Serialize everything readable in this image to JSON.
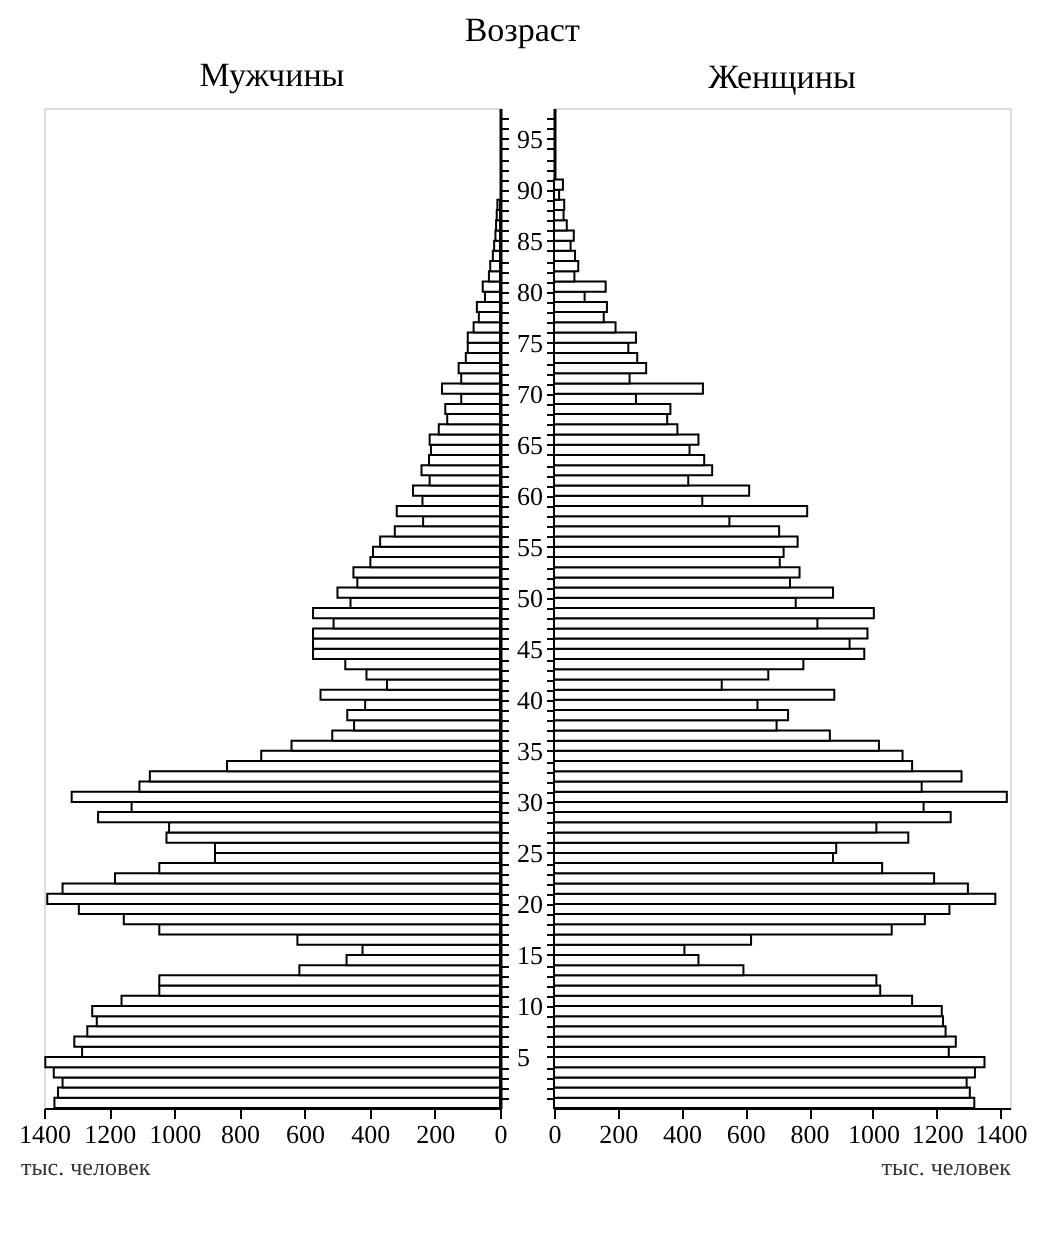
{
  "chart_data": [
    {
      "type": "bar",
      "orientation": "horizontal",
      "title": "Мужчины",
      "ylabel": "Возраст",
      "xlabel": "тыс. человек",
      "grid": false,
      "legend": false,
      "x": [
        0,
        1,
        2,
        3,
        4,
        5,
        6,
        7,
        8,
        9,
        10,
        11,
        12,
        13,
        14,
        15,
        16,
        17,
        18,
        19,
        20,
        21,
        22,
        23,
        24,
        25,
        26,
        27,
        28,
        29,
        30,
        31,
        32,
        33,
        34,
        35,
        36,
        37,
        38,
        39,
        40,
        41,
        42,
        43,
        44,
        45,
        46,
        47,
        48,
        49,
        50,
        51,
        52,
        53,
        54,
        55,
        56,
        57,
        58,
        59,
        60,
        61,
        62,
        63,
        64,
        65,
        66,
        67,
        68,
        69,
        70,
        71,
        72,
        73,
        74,
        75,
        76,
        77,
        78,
        79,
        80,
        81,
        82,
        83,
        84,
        85,
        86,
        87,
        88
      ],
      "series": [
        {
          "color": "#ffffff",
          "values": [
            1368,
            1357,
            1343,
            1370,
            1396,
            1283,
            1307,
            1267,
            1238,
            1252,
            1162,
            1046,
            1046,
            616,
            471,
            422,
            622,
            1046,
            1155,
            1293,
            1390,
            1343,
            1182,
            1046,
            875,
            875,
            1024,
            1016,
            1234,
            1131,
            1315,
            1107,
            1075,
            838,
            733,
            640,
            515,
            448,
            469,
            414,
            551,
            347,
            410,
            475,
            574,
            574,
            574,
            511,
            574,
            459,
            499,
            438,
            450,
            398,
            390,
            368,
            323,
            236,
            317,
            238,
            267,
            216,
            241,
            218,
            212,
            216,
            188,
            162,
            168,
            119,
            178,
            119,
            127,
            105,
            99,
            99,
            81,
            65,
            71,
            46,
            53,
            34,
            30,
            22,
            18,
            14,
            12,
            10,
            8
          ]
        }
      ],
      "xlim": [
        1400,
        0
      ],
      "xticks": [
        1400,
        1200,
        1000,
        800,
        600,
        400,
        200,
        0
      ],
      "ylim": [
        0,
        98
      ],
      "yticks": [
        {
          "value": 1,
          "label": null
        },
        {
          "value": 2,
          "label": null
        },
        {
          "value": 3,
          "label": null
        },
        {
          "value": 4,
          "label": null
        },
        5,
        {
          "value": 6,
          "label": null
        },
        {
          "value": 7,
          "label": null
        },
        {
          "value": 8,
          "label": null
        },
        {
          "value": 9,
          "label": null
        },
        10,
        {
          "value": 11,
          "label": null
        },
        {
          "value": 12,
          "label": null
        },
        {
          "value": 13,
          "label": null
        },
        {
          "value": 14,
          "label": null
        },
        15,
        {
          "value": 16,
          "label": null
        },
        {
          "value": 17,
          "label": null
        },
        {
          "value": 18,
          "label": null
        },
        {
          "value": 19,
          "label": null
        },
        20,
        {
          "value": 21,
          "label": null
        },
        {
          "value": 22,
          "label": null
        },
        {
          "value": 23,
          "label": null
        },
        {
          "value": 24,
          "label": null
        },
        25,
        {
          "value": 26,
          "label": null
        },
        {
          "value": 27,
          "label": null
        },
        {
          "value": 28,
          "label": null
        },
        {
          "value": 29,
          "label": null
        },
        30,
        {
          "value": 31,
          "label": null
        },
        {
          "value": 32,
          "label": null
        },
        {
          "value": 33,
          "label": null
        },
        {
          "value": 34,
          "label": null
        },
        35,
        {
          "value": 36,
          "label": null
        },
        {
          "value": 37,
          "label": null
        },
        {
          "value": 38,
          "label": null
        },
        {
          "value": 39,
          "label": null
        },
        40,
        {
          "value": 41,
          "label": null
        },
        {
          "value": 42,
          "label": null
        },
        {
          "value": 43,
          "label": null
        },
        {
          "value": 44,
          "label": null
        },
        45,
        {
          "value": 46,
          "label": null
        },
        {
          "value": 47,
          "label": null
        },
        {
          "value": 48,
          "label": null
        },
        {
          "value": 49,
          "label": null
        },
        50,
        {
          "value": 51,
          "label": null
        },
        {
          "value": 52,
          "label": null
        },
        {
          "value": 53,
          "label": null
        },
        {
          "value": 54,
          "label": null
        },
        55,
        {
          "value": 56,
          "label": null
        },
        {
          "value": 57,
          "label": null
        },
        {
          "value": 58,
          "label": null
        },
        {
          "value": 59,
          "label": null
        },
        60,
        {
          "value": 61,
          "label": null
        },
        {
          "value": 62,
          "label": null
        },
        {
          "value": 63,
          "label": null
        },
        {
          "value": 64,
          "label": null
        },
        65,
        {
          "value": 66,
          "label": null
        },
        {
          "value": 67,
          "label": null
        },
        {
          "value": 68,
          "label": null
        },
        {
          "value": 69,
          "label": null
        },
        70,
        {
          "value": 71,
          "label": null
        },
        {
          "value": 72,
          "label": null
        },
        {
          "value": 73,
          "label": null
        },
        {
          "value": 74,
          "label": null
        },
        75,
        {
          "value": 76,
          "label": null
        },
        {
          "value": 77,
          "label": null
        },
        {
          "value": 78,
          "label": null
        },
        {
          "value": 79,
          "label": null
        },
        80,
        {
          "value": 81,
          "label": null
        },
        {
          "value": 82,
          "label": null
        },
        {
          "value": 83,
          "label": null
        },
        {
          "value": 84,
          "label": null
        },
        85,
        {
          "value": 86,
          "label": null
        },
        {
          "value": 87,
          "label": null
        },
        {
          "value": 88,
          "label": null
        },
        {
          "value": 89,
          "label": null
        },
        90,
        {
          "value": 91,
          "label": null
        },
        {
          "value": 92,
          "label": null
        },
        {
          "value": 93,
          "label": null
        },
        {
          "value": 94,
          "label": null
        },
        95,
        {
          "value": 96,
          "label": null
        },
        {
          "value": 97,
          "label": null
        }
      ]
    },
    {
      "type": "bar",
      "orientation": "horizontal",
      "title": "Женщины",
      "xlabel": "тыс. человек",
      "grid": false,
      "legend": false,
      "tick_labels": "x",
      "x": [
        0,
        1,
        2,
        3,
        4,
        5,
        6,
        7,
        8,
        9,
        10,
        11,
        12,
        13,
        14,
        15,
        16,
        17,
        18,
        19,
        20,
        21,
        22,
        23,
        24,
        25,
        26,
        27,
        28,
        29,
        30,
        31,
        32,
        33,
        34,
        35,
        36,
        37,
        38,
        39,
        40,
        41,
        42,
        43,
        44,
        45,
        46,
        47,
        48,
        49,
        50,
        51,
        52,
        53,
        54,
        55,
        56,
        57,
        58,
        59,
        60,
        61,
        62,
        63,
        64,
        65,
        66,
        67,
        68,
        69,
        70,
        71,
        72,
        73,
        74,
        75,
        76,
        77,
        78,
        79,
        80,
        81,
        82,
        83,
        84,
        85,
        86,
        87,
        88,
        89,
        90
      ],
      "series": [
        {
          "color": "#ffffff",
          "values": [
            1318,
            1304,
            1294,
            1320,
            1350,
            1238,
            1260,
            1228,
            1220,
            1216,
            1123,
            1023,
            1011,
            594,
            453,
            409,
            618,
            1059,
            1163,
            1240,
            1384,
            1298,
            1192,
            1029,
            875,
            885,
            1111,
            1011,
            1244,
            1159,
            1420,
            1153,
            1278,
            1123,
            1093,
            1019,
            865,
            698,
            734,
            638,
            879,
            526,
            672,
            782,
            973,
            927,
            983,
            826,
            1003,
            758,
            875,
            740,
            770,
            708,
            720,
            764,
            706,
            550,
            794,
            465,
            612,
            421,
            496,
            471,
            425,
            453,
            387,
            355,
            365,
            257,
            467,
            237,
            289,
            261,
            233,
            257,
            193,
            156,
            166,
            96,
            162,
            64,
            76,
            66,
            52,
            62,
            40,
            30,
            32,
            16,
            28
          ]
        }
      ],
      "xlim": [
        0,
        1430
      ],
      "xticks": [
        0,
        200,
        400,
        600,
        800,
        1000,
        1200,
        1400
      ],
      "ylim": [
        0,
        98
      ],
      "yticks": [
        {
          "value": 1,
          "label": null
        },
        {
          "value": 2,
          "label": null
        },
        {
          "value": 3,
          "label": null
        },
        {
          "value": 4,
          "label": null
        },
        {
          "value": 5,
          "label": null
        },
        {
          "value": 6,
          "label": null
        },
        {
          "value": 7,
          "label": null
        },
        {
          "value": 8,
          "label": null
        },
        {
          "value": 9,
          "label": null
        },
        {
          "value": 10,
          "label": null
        },
        {
          "value": 11,
          "label": null
        },
        {
          "value": 12,
          "label": null
        },
        {
          "value": 13,
          "label": null
        },
        {
          "value": 14,
          "label": null
        },
        {
          "value": 15,
          "label": null
        },
        {
          "value": 16,
          "label": null
        },
        {
          "value": 17,
          "label": null
        },
        {
          "value": 18,
          "label": null
        },
        {
          "value": 19,
          "label": null
        },
        {
          "value": 20,
          "label": null
        },
        {
          "value": 21,
          "label": null
        },
        {
          "value": 22,
          "label": null
        },
        {
          "value": 23,
          "label": null
        },
        {
          "value": 24,
          "label": null
        },
        {
          "value": 25,
          "label": null
        },
        {
          "value": 26,
          "label": null
        },
        {
          "value": 27,
          "label": null
        },
        {
          "value": 28,
          "label": null
        },
        {
          "value": 29,
          "label": null
        },
        {
          "value": 30,
          "label": null
        },
        {
          "value": 31,
          "label": null
        },
        {
          "value": 32,
          "label": null
        },
        {
          "value": 33,
          "label": null
        },
        {
          "value": 34,
          "label": null
        },
        {
          "value": 35,
          "label": null
        },
        {
          "value": 36,
          "label": null
        },
        {
          "value": 37,
          "label": null
        },
        {
          "value": 38,
          "label": null
        },
        {
          "value": 39,
          "label": null
        },
        {
          "value": 40,
          "label": null
        },
        {
          "value": 41,
          "label": null
        },
        {
          "value": 42,
          "label": null
        },
        {
          "value": 43,
          "label": null
        },
        {
          "value": 44,
          "label": null
        },
        {
          "value": 45,
          "label": null
        },
        {
          "value": 46,
          "label": null
        },
        {
          "value": 47,
          "label": null
        },
        {
          "value": 48,
          "label": null
        },
        {
          "value": 49,
          "label": null
        },
        {
          "value": 50,
          "label": null
        },
        {
          "value": 51,
          "label": null
        },
        {
          "value": 52,
          "label": null
        },
        {
          "value": 53,
          "label": null
        },
        {
          "value": 54,
          "label": null
        },
        {
          "value": 55,
          "label": null
        },
        {
          "value": 56,
          "label": null
        },
        {
          "value": 57,
          "label": null
        },
        {
          "value": 58,
          "label": null
        },
        {
          "value": 59,
          "label": null
        },
        {
          "value": 60,
          "label": null
        },
        {
          "value": 61,
          "label": null
        },
        {
          "value": 62,
          "label": null
        },
        {
          "value": 63,
          "label": null
        },
        {
          "value": 64,
          "label": null
        },
        {
          "value": 65,
          "label": null
        },
        {
          "value": 66,
          "label": null
        },
        {
          "value": 67,
          "label": null
        },
        {
          "value": 68,
          "label": null
        },
        {
          "value": 69,
          "label": null
        },
        {
          "value": 70,
          "label": null
        },
        {
          "value": 71,
          "label": null
        },
        {
          "value": 72,
          "label": null
        },
        {
          "value": 73,
          "label": null
        },
        {
          "value": 74,
          "label": null
        },
        {
          "value": 75,
          "label": null
        },
        {
          "value": 76,
          "label": null
        },
        {
          "value": 77,
          "label": null
        },
        {
          "value": 78,
          "label": null
        },
        {
          "value": 79,
          "label": null
        },
        {
          "value": 80,
          "label": null
        },
        {
          "value": 81,
          "label": null
        },
        {
          "value": 82,
          "label": null
        },
        {
          "value": 83,
          "label": null
        },
        {
          "value": 84,
          "label": null
        },
        {
          "value": 85,
          "label": null
        },
        {
          "value": 86,
          "label": null
        },
        {
          "value": 87,
          "label": null
        },
        {
          "value": 88,
          "label": null
        },
        {
          "value": 89,
          "label": null
        },
        {
          "value": 90,
          "label": null
        },
        {
          "value": 91,
          "label": null
        },
        {
          "value": 92,
          "label": null
        },
        {
          "value": 93,
          "label": null
        },
        {
          "value": 94,
          "label": null
        },
        {
          "value": 95,
          "label": null
        },
        {
          "value": 96,
          "label": null
        },
        {
          "value": 97,
          "label": null
        }
      ]
    }
  ]
}
